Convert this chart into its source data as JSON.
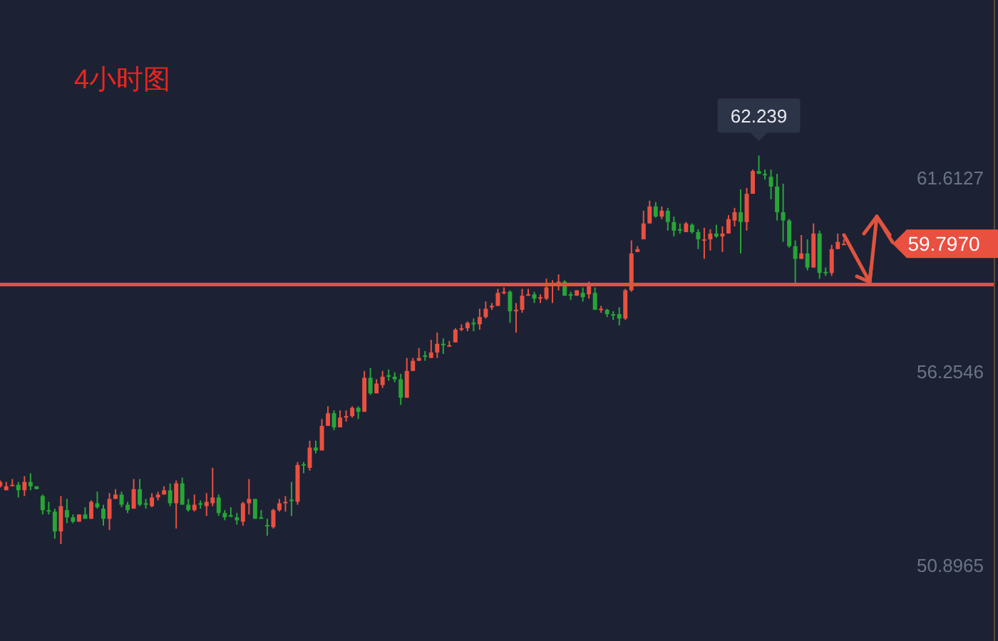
{
  "chart_data": {
    "type": "candlestick",
    "title": "4小时图",
    "ylim": [
      48.81,
      66.54
    ],
    "yticks": [
      61.6127,
      56.2546,
      50.8965
    ],
    "grid": false,
    "categories": [
      null,
      null,
      null,
      null,
      null,
      null,
      null,
      null,
      null,
      null,
      null,
      null,
      null,
      null,
      null,
      null,
      null,
      null,
      null,
      null,
      null,
      null,
      null,
      null,
      null,
      null,
      null,
      null,
      null,
      null,
      null,
      null,
      null,
      null,
      null,
      null,
      null,
      null,
      null,
      null,
      null,
      null,
      null,
      null,
      null,
      null,
      null,
      null,
      null,
      null,
      null,
      null,
      null,
      null,
      null,
      null,
      null,
      null,
      null,
      null,
      null,
      null,
      null,
      null,
      null,
      null,
      null,
      null,
      null,
      null,
      null,
      null,
      null,
      null,
      null,
      null,
      null,
      null,
      null,
      null,
      null,
      null,
      null,
      null,
      null,
      null,
      null,
      null,
      null,
      null,
      null,
      null,
      null,
      null,
      null,
      null,
      null,
      null,
      null,
      null,
      null,
      null,
      null,
      null,
      null,
      null,
      null,
      null,
      null,
      null,
      null,
      null,
      null,
      null,
      null,
      null,
      null,
      null,
      null,
      null,
      null,
      null,
      null,
      null,
      null,
      null,
      null,
      null,
      null,
      null,
      null,
      null,
      null,
      null,
      null,
      null,
      null,
      null,
      null,
      null
    ],
    "ohlc": [
      [
        53.09,
        53.25,
        53.05,
        53.21
      ],
      [
        52.98,
        53.21,
        52.98,
        53.09
      ],
      [
        53.11,
        53.29,
        53.09,
        53.13
      ],
      [
        53.13,
        53.21,
        52.78,
        52.98
      ],
      [
        52.98,
        53.37,
        52.82,
        53.21
      ],
      [
        53.21,
        53.45,
        52.98,
        53.09
      ],
      [
        53.09,
        53.09,
        53.01,
        53.01
      ],
      [
        52.82,
        52.86,
        52.31,
        52.43
      ],
      [
        52.43,
        52.66,
        52.31,
        52.39
      ],
      [
        52.39,
        52.47,
        51.64,
        51.84
      ],
      [
        51.84,
        52.82,
        51.49,
        52.54
      ],
      [
        52.43,
        52.74,
        52.07,
        52.23
      ],
      [
        52.23,
        52.31,
        52.07,
        52.11
      ],
      [
        52.11,
        52.31,
        52.11,
        52.31
      ],
      [
        52.31,
        52.51,
        52.19,
        52.19
      ],
      [
        52.19,
        52.7,
        52.19,
        52.66
      ],
      [
        52.62,
        52.94,
        52.47,
        52.51
      ],
      [
        52.47,
        52.58,
        52.0,
        52.19
      ],
      [
        52.19,
        52.9,
        51.88,
        52.74
      ],
      [
        52.74,
        53.01,
        52.74,
        52.86
      ],
      [
        52.86,
        52.94,
        52.51,
        52.58
      ],
      [
        52.58,
        52.66,
        52.35,
        52.43
      ],
      [
        52.47,
        53.29,
        52.47,
        53.01
      ],
      [
        53.01,
        53.29,
        52.54,
        52.58
      ],
      [
        52.62,
        52.74,
        52.47,
        52.58
      ],
      [
        52.54,
        52.9,
        52.51,
        52.78
      ],
      [
        52.78,
        52.94,
        52.7,
        52.86
      ],
      [
        52.86,
        53.09,
        52.86,
        52.98
      ],
      [
        52.98,
        53.17,
        52.54,
        52.62
      ],
      [
        52.62,
        53.25,
        51.92,
        53.17
      ],
      [
        53.17,
        53.33,
        52.58,
        52.58
      ],
      [
        52.58,
        52.74,
        52.39,
        52.43
      ],
      [
        52.43,
        52.86,
        52.39,
        52.58
      ],
      [
        52.62,
        52.7,
        52.47,
        52.58
      ],
      [
        52.54,
        52.9,
        52.27,
        52.66
      ],
      [
        52.62,
        53.6,
        52.54,
        52.78
      ],
      [
        52.78,
        52.86,
        52.27,
        52.35
      ],
      [
        52.35,
        52.43,
        52.15,
        52.23
      ],
      [
        52.29,
        52.51,
        52.23,
        52.27
      ],
      [
        52.23,
        52.35,
        52.03,
        52.15
      ],
      [
        52.11,
        52.66,
        52.0,
        52.62
      ],
      [
        52.62,
        53.29,
        52.31,
        52.74
      ],
      [
        52.74,
        52.74,
        52.19,
        52.19
      ],
      [
        52.23,
        52.43,
        52.19,
        52.19
      ],
      [
        52.02,
        52.19,
        51.72,
        52.0
      ],
      [
        51.96,
        52.47,
        51.92,
        52.43
      ],
      [
        52.43,
        52.74,
        52.39,
        52.62
      ],
      [
        52.64,
        52.82,
        52.39,
        52.66
      ],
      [
        52.72,
        53.21,
        52.27,
        52.7
      ],
      [
        52.66,
        53.76,
        52.58,
        53.68
      ],
      [
        53.7,
        53.76,
        53.45,
        53.68
      ],
      [
        53.6,
        54.35,
        53.52,
        54.16
      ],
      [
        54.16,
        54.35,
        54.0,
        54.08
      ],
      [
        54.08,
        54.95,
        54.08,
        54.76
      ],
      [
        54.76,
        55.3,
        54.76,
        55.11
      ],
      [
        55.11,
        55.19,
        54.64,
        54.72
      ],
      [
        54.72,
        55.19,
        54.72,
        54.99
      ],
      [
        54.99,
        55.19,
        54.88,
        55.03
      ],
      [
        55.03,
        55.3,
        54.99,
        55.26
      ],
      [
        55.26,
        55.3,
        54.95,
        55.15
      ],
      [
        55.15,
        56.28,
        55.15,
        56.09
      ],
      [
        56.09,
        56.36,
        55.62,
        55.66
      ],
      [
        55.66,
        56.05,
        55.66,
        55.93
      ],
      [
        55.89,
        56.28,
        55.81,
        56.12
      ],
      [
        56.16,
        56.32,
        56.01,
        56.12
      ],
      [
        56.12,
        56.24,
        55.97,
        56.05
      ],
      [
        56.05,
        56.2,
        55.34,
        55.54
      ],
      [
        55.54,
        56.64,
        55.54,
        56.28
      ],
      [
        56.28,
        56.64,
        56.28,
        56.56
      ],
      [
        56.56,
        56.91,
        56.56,
        56.64
      ],
      [
        56.71,
        56.83,
        56.56,
        56.67
      ],
      [
        56.64,
        57.14,
        56.64,
        56.79
      ],
      [
        56.79,
        57.34,
        56.64,
        57.03
      ],
      [
        57.03,
        57.18,
        56.75,
        56.99
      ],
      [
        56.97,
        57.11,
        56.95,
        56.99
      ],
      [
        57.07,
        57.46,
        57.07,
        57.42
      ],
      [
        57.42,
        57.57,
        57.38,
        57.46
      ],
      [
        57.46,
        57.65,
        57.38,
        57.61
      ],
      [
        57.61,
        57.73,
        57.38,
        57.57
      ],
      [
        57.57,
        58.0,
        57.42,
        57.77
      ],
      [
        57.77,
        58.2,
        57.73,
        58.0
      ],
      [
        58.04,
        58.16,
        57.97,
        58.08
      ],
      [
        58.08,
        58.55,
        58.08,
        58.44
      ],
      [
        58.44,
        58.59,
        58.4,
        58.47
      ],
      [
        58.47,
        58.51,
        57.61,
        57.93
      ],
      [
        57.93,
        58.16,
        57.34,
        57.97
      ],
      [
        57.97,
        58.55,
        57.89,
        58.36
      ],
      [
        58.38,
        58.55,
        58.36,
        58.4
      ],
      [
        58.4,
        58.47,
        58.16,
        58.28
      ],
      [
        58.28,
        58.4,
        58.16,
        58.32
      ],
      [
        58.28,
        58.83,
        58.24,
        58.59
      ],
      [
        58.65,
        58.79,
        58.16,
        58.67
      ],
      [
        58.67,
        58.95,
        58.51,
        58.75
      ],
      [
        58.75,
        58.79,
        58.36,
        58.36
      ],
      [
        58.4,
        58.47,
        58.24,
        58.36
      ],
      [
        58.36,
        58.51,
        58.36,
        58.51
      ],
      [
        58.44,
        58.59,
        58.2,
        58.32
      ],
      [
        58.4,
        58.75,
        58.28,
        58.67
      ],
      [
        58.44,
        58.59,
        57.97,
        57.97
      ],
      [
        57.98,
        58.08,
        57.89,
        58.0
      ],
      [
        57.97,
        58.0,
        57.77,
        57.85
      ],
      [
        57.85,
        57.93,
        57.69,
        57.81
      ],
      [
        57.85,
        58.04,
        57.54,
        57.73
      ],
      [
        57.73,
        58.55,
        57.69,
        58.51
      ],
      [
        58.51,
        59.89,
        58.47,
        59.53
      ],
      [
        59.57,
        59.73,
        59.57,
        59.65
      ],
      [
        59.92,
        60.71,
        59.92,
        60.36
      ],
      [
        60.36,
        60.99,
        60.36,
        60.83
      ],
      [
        60.83,
        60.95,
        60.52,
        60.55
      ],
      [
        60.55,
        60.83,
        60.48,
        60.71
      ],
      [
        60.71,
        60.79,
        60.16,
        60.4
      ],
      [
        60.4,
        60.55,
        60.0,
        60.16
      ],
      [
        60.2,
        60.36,
        60.08,
        60.16
      ],
      [
        60.12,
        60.4,
        60.12,
        60.36
      ],
      [
        60.32,
        60.36,
        60.08,
        60.12
      ],
      [
        60.12,
        60.2,
        59.65,
        59.92
      ],
      [
        59.89,
        60.24,
        59.38,
        59.92
      ],
      [
        59.92,
        60.2,
        59.61,
        60.08
      ],
      [
        60.08,
        60.32,
        59.96,
        60.0
      ],
      [
        60.0,
        60.28,
        59.57,
        60.08
      ],
      [
        60.08,
        60.59,
        60.08,
        60.48
      ],
      [
        60.44,
        60.79,
        60.28,
        60.67
      ],
      [
        60.67,
        61.3,
        59.53,
        60.4
      ],
      [
        60.4,
        61.34,
        60.16,
        61.18
      ],
      [
        61.18,
        61.85,
        61.18,
        61.81
      ],
      [
        61.81,
        62.239,
        61.73,
        61.73
      ],
      [
        61.73,
        61.85,
        61.57,
        61.69
      ],
      [
        61.65,
        61.85,
        61.03,
        61.38
      ],
      [
        61.38,
        61.73,
        60.44,
        60.67
      ],
      [
        60.67,
        61.46,
        59.85,
        60.44
      ],
      [
        60.44,
        60.48,
        59.69,
        59.73
      ],
      [
        59.73,
        59.89,
        58.71,
        59.38
      ],
      [
        59.38,
        60.04,
        59.38,
        59.53
      ],
      [
        59.53,
        59.92,
        59.06,
        59.14
      ],
      [
        59.14,
        60.36,
        59.14,
        60.08
      ],
      [
        60.08,
        60.16,
        58.83,
        58.99
      ],
      [
        59.02,
        59.14,
        58.91,
        58.99
      ],
      [
        58.99,
        59.77,
        58.91,
        59.65
      ],
      [
        59.65,
        60.08,
        59.65,
        59.85
      ],
      [
        59.78,
        59.92,
        59.77,
        59.797
      ]
    ],
    "colors": [
      "#ea5040",
      "#ea5040",
      "#ea5040",
      "#27a537",
      "#ea5040",
      "#27a537",
      "#27a537",
      "#27a537",
      "#27a537",
      "#27a537",
      "#ea5040",
      "#27a537",
      "#27a537",
      "#ea5040",
      "#27a537",
      "#ea5040",
      "#27a537",
      "#27a537",
      "#ea5040",
      "#ea5040",
      "#27a537",
      "#27a537",
      "#ea5040",
      "#27a537",
      "#27a537",
      "#ea5040",
      "#ea5040",
      "#ea5040",
      "#27a537",
      "#ea5040",
      "#27a537",
      "#27a537",
      "#ea5040",
      "#27a537",
      "#ea5040",
      "#ea5040",
      "#27a537",
      "#27a537",
      "#27a537",
      "#27a537",
      "#ea5040",
      "#ea5040",
      "#27a537",
      "#27a537",
      "#27a537",
      "#ea5040",
      "#ea5040",
      "#ea5040",
      "#27a537",
      "#ea5040",
      "#27a537",
      "#ea5040",
      "#27a537",
      "#ea5040",
      "#ea5040",
      "#27a537",
      "#ea5040",
      "#ea5040",
      "#ea5040",
      "#27a537",
      "#ea5040",
      "#27a537",
      "#ea5040",
      "#ea5040",
      "#27a537",
      "#27a537",
      "#27a537",
      "#ea5040",
      "#ea5040",
      "#ea5040",
      "#27a537",
      "#ea5040",
      "#ea5040",
      "#27a537",
      "#ea5040",
      "#ea5040",
      "#ea5040",
      "#ea5040",
      "#27a537",
      "#ea5040",
      "#ea5040",
      "#ea5040",
      "#ea5040",
      "#ea5040",
      "#27a537",
      "#ea5040",
      "#ea5040",
      "#ea5040",
      "#27a537",
      "#ea5040",
      "#ea5040",
      "#ea5040",
      "#ea5040",
      "#27a537",
      "#27a537",
      "#ea5040",
      "#27a537",
      "#ea5040",
      "#27a537",
      "#ea5040",
      "#27a537",
      "#27a537",
      "#27a537",
      "#ea5040",
      "#ea5040",
      "#ea5040",
      "#ea5040",
      "#ea5040",
      "#27a537",
      "#ea5040",
      "#27a537",
      "#27a537",
      "#27a537",
      "#ea5040",
      "#27a537",
      "#27a537",
      "#ea5040",
      "#ea5040",
      "#27a537",
      "#ea5040",
      "#ea5040",
      "#ea5040",
      "#27a537",
      "#ea5040",
      "#ea5040",
      "#27a537",
      "#27a537",
      "#27a537",
      "#27a537",
      "#27a537",
      "#27a537",
      "#27a537",
      "#ea5040",
      "#27a537",
      "#ea5040",
      "#27a537",
      "#27a537",
      "#ea5040",
      "#ea5040",
      "#ea5040"
    ],
    "ref_lines": [
      {
        "axis": "y",
        "value": 58.67,
        "color": "#e0533f"
      }
    ],
    "annotations": [
      {
        "text": "62.239",
        "y": 62.239
      },
      "59.7970"
    ]
  }
}
